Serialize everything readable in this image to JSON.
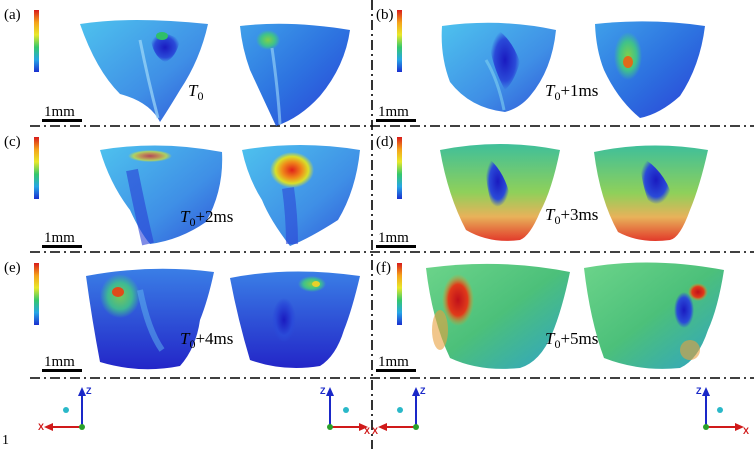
{
  "panels": [
    {
      "label": "(a)",
      "time_symbol": "T",
      "time_sub": "0",
      "time_suffix": "",
      "scale_label": "1mm"
    },
    {
      "label": "(b)",
      "time_symbol": "T",
      "time_sub": "0",
      "time_suffix": "+1ms",
      "scale_label": "1mm"
    },
    {
      "label": "(c)",
      "time_symbol": "T",
      "time_sub": "0",
      "time_suffix": "+2ms",
      "scale_label": "1mm"
    },
    {
      "label": "(d)",
      "time_symbol": "T",
      "time_sub": "0",
      "time_suffix": "+3ms",
      "scale_label": "1mm"
    },
    {
      "label": "(e)",
      "time_symbol": "T",
      "time_sub": "0",
      "time_suffix": "+4ms",
      "scale_label": "1mm"
    },
    {
      "label": "(f)",
      "time_symbol": "T",
      "time_sub": "0",
      "time_suffix": "+5ms",
      "scale_label": "1mm"
    }
  ],
  "axes": {
    "z": "Z",
    "x": "X"
  },
  "page_mark": "1",
  "colors": {
    "low": "#1a3fd0",
    "mid": "#3fb4e6",
    "high": "#e0201a"
  }
}
